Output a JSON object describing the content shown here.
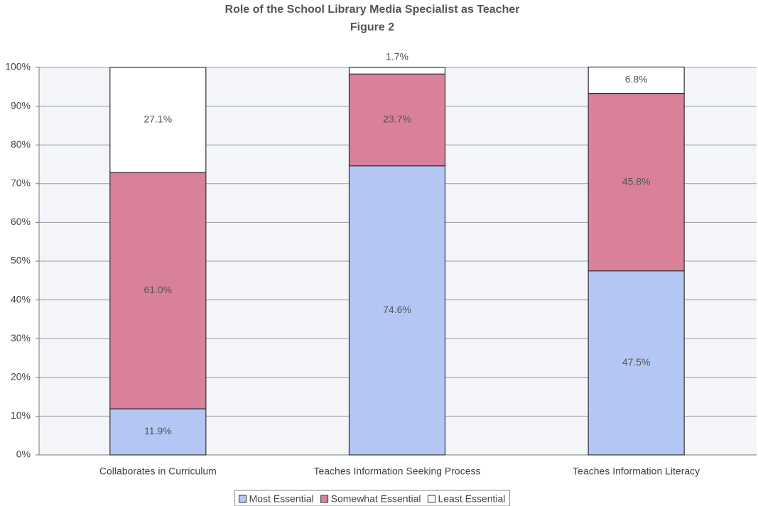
{
  "chart_data": {
    "type": "stacked_bar",
    "title": "Role of the School Library Media Specialist as Teacher",
    "subtitle": "Figure 2",
    "categories": [
      "Collaborates in Curriculum",
      "Teaches Information Seeking Process",
      "Teaches Information Literacy"
    ],
    "series": [
      {
        "name": "Most Essential",
        "color": "#b3c6f4",
        "values": [
          11.9,
          74.6,
          47.5
        ],
        "value_labels": [
          "11.9%",
          "74.6%",
          "47.5%"
        ]
      },
      {
        "name": "Somewhat Essential",
        "color": "#d9809b",
        "values": [
          61.0,
          23.7,
          45.8
        ],
        "value_labels": [
          "61.0%",
          "23.7%",
          "45.8%"
        ]
      },
      {
        "name": "Least Essential",
        "color": "#ffffff",
        "values": [
          27.1,
          1.7,
          6.8
        ],
        "value_labels": [
          "27.1%",
          "1.7%",
          "6.8%"
        ]
      }
    ],
    "ylim": [
      0,
      100
    ],
    "yticks": [
      {
        "value": 0,
        "label": "0%"
      },
      {
        "value": 10,
        "label": "10%"
      },
      {
        "value": 20,
        "label": "20%"
      },
      {
        "value": 30,
        "label": "30%"
      },
      {
        "value": 40,
        "label": "40%"
      },
      {
        "value": 50,
        "label": "50%"
      },
      {
        "value": 60,
        "label": "60%"
      },
      {
        "value": 70,
        "label": "70%"
      },
      {
        "value": 80,
        "label": "80%"
      },
      {
        "value": 90,
        "label": "90%"
      },
      {
        "value": 100,
        "label": "100%"
      }
    ],
    "grid": true,
    "legend": "bottom"
  }
}
